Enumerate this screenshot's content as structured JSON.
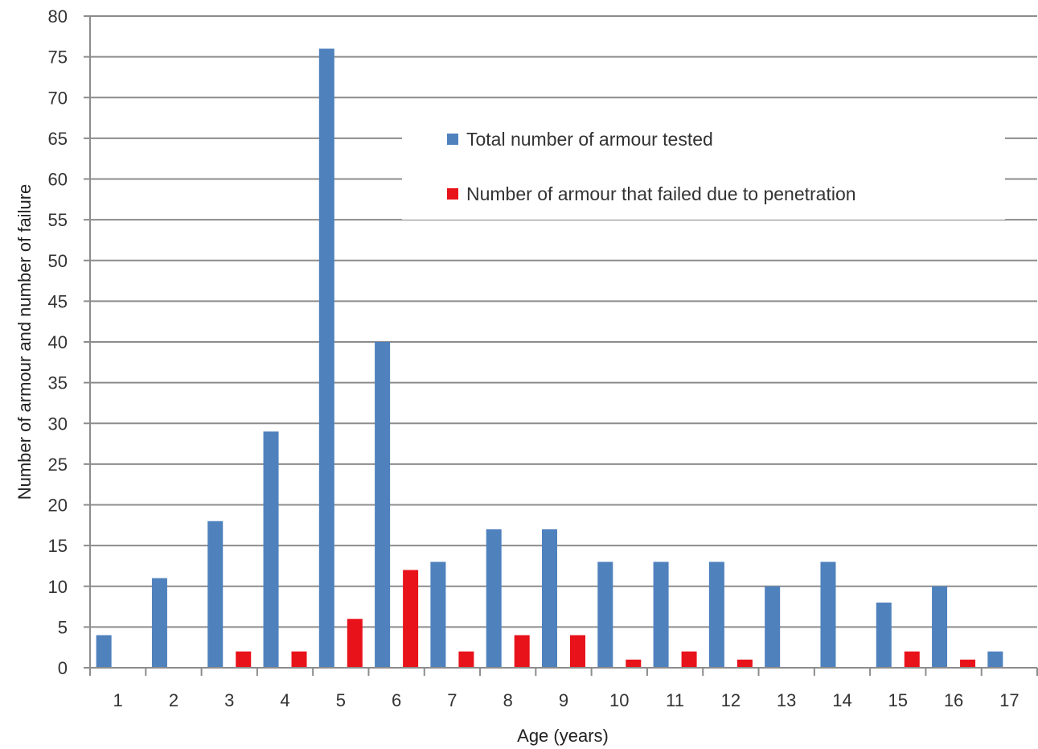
{
  "chart_data": {
    "type": "bar",
    "title": "",
    "xlabel": "Age (years)",
    "ylabel": "Number of armour and number of failure",
    "categories": [
      "1",
      "2",
      "3",
      "4",
      "5",
      "6",
      "7",
      "8",
      "9",
      "10",
      "11",
      "12",
      "13",
      "14",
      "15",
      "16",
      "17"
    ],
    "ylim": [
      0,
      80
    ],
    "yticks": [
      0,
      5,
      10,
      15,
      20,
      25,
      30,
      35,
      40,
      45,
      50,
      55,
      60,
      65,
      70,
      75,
      80
    ],
    "grid": true,
    "legend_position": "top-right",
    "series": [
      {
        "name": "Total number of armour tested",
        "color": "#4f81bd",
        "values": [
          4,
          11,
          18,
          29,
          76,
          40,
          13,
          17,
          17,
          13,
          13,
          13,
          10,
          13,
          8,
          10,
          2
        ]
      },
      {
        "name": "Number of armour that failed due to penetration",
        "color": "#e8121b",
        "values": [
          0,
          0,
          2,
          2,
          6,
          12,
          2,
          4,
          4,
          1,
          2,
          1,
          0,
          0,
          2,
          1,
          0
        ]
      }
    ]
  }
}
